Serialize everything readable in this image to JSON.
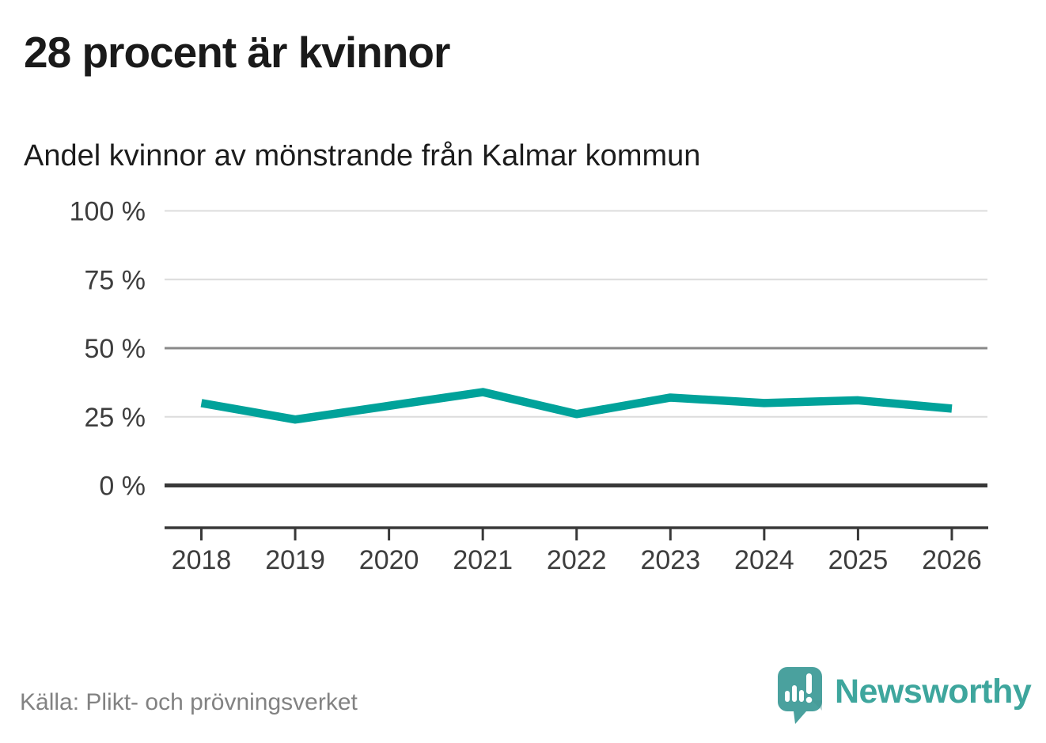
{
  "chart_data": {
    "type": "line",
    "title": "28 procent är kvinnor",
    "subtitle": "Andel kvinnor av mönstrande från Kalmar kommun",
    "categories": [
      "2018",
      "2019",
      "2020",
      "2021",
      "2022",
      "2023",
      "2024",
      "2025",
      "2026"
    ],
    "values": [
      30,
      24,
      29,
      34,
      26,
      32,
      30,
      31,
      28
    ],
    "unit": "%",
    "xlabel": "",
    "ylabel": "",
    "ylim": [
      0,
      100
    ],
    "yticks": [
      {
        "value": 100,
        "label": "100 %"
      },
      {
        "value": 75,
        "label": "75 %"
      },
      {
        "value": 50,
        "label": "50 %"
      },
      {
        "value": 25,
        "label": "25 %"
      },
      {
        "value": 0,
        "label": "0 %"
      }
    ],
    "grid": true,
    "legend_position": "none",
    "line_color": "#00a29a",
    "grid_color": "#dcdcdc",
    "mid_grid_color": "#898989",
    "axis_color": "#383838",
    "label_color": "#3d3d3d"
  },
  "footer": {
    "source": "Källa: Plikt- och prövningsverket",
    "brand": "Newsworthy"
  },
  "logo": {
    "bubble_color": "#4aa19e",
    "bubble_shade_color": "#41918f",
    "mark_color": "#ffffff"
  }
}
